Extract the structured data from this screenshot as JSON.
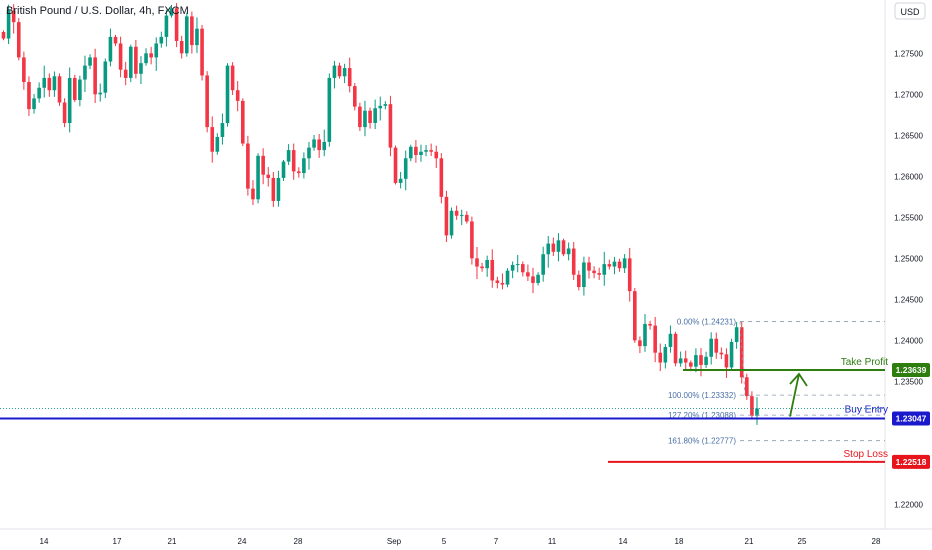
{
  "header": {
    "symbol_title": "British Pound / U.S. Dollar, 4h, FXCM",
    "currency_label": "USD"
  },
  "colors": {
    "up": "#089981",
    "down": "#f23645",
    "take_profit": "#2e7d0f",
    "buy_entry": "#1a1acc",
    "stop_loss": "#e8141c",
    "fib": "#4a6fa5"
  },
  "chart_data": {
    "type": "candlestick",
    "instrument": "British Pound / U.S. Dollar",
    "timeframe": "4h",
    "source": "FXCM",
    "ylim": [
      1.217,
      1.2815
    ],
    "y_ticks": [
      "1.27500",
      "1.27000",
      "1.26500",
      "1.26000",
      "1.25500",
      "1.25000",
      "1.24500",
      "1.24000",
      "1.23500",
      "1.22000"
    ],
    "x_ticks": [
      "14",
      "17",
      "21",
      "24",
      "28",
      "Sep",
      "5",
      "7",
      "11",
      "14",
      "18",
      "21",
      "25",
      "28"
    ],
    "candle_closes": [
      1.2768,
      1.2802,
      1.2788,
      1.2745,
      1.2715,
      1.2682,
      1.2695,
      1.2708,
      1.272,
      1.2705,
      1.2722,
      1.269,
      1.2665,
      1.272,
      1.2693,
      1.2718,
      1.2735,
      1.2745,
      1.27,
      1.2702,
      1.274,
      1.277,
      1.2762,
      1.273,
      1.272,
      1.2758,
      1.2725,
      1.2738,
      1.275,
      1.2745,
      1.2762,
      1.277,
      1.2796,
      1.2805,
      1.2765,
      1.275,
      1.2795,
      1.276,
      1.278,
      1.2723,
      1.266,
      1.263,
      1.2648,
      1.2665,
      1.2735,
      1.2705,
      1.2692,
      1.264,
      1.2585,
      1.2572,
      1.2625,
      1.2602,
      1.2598,
      1.257,
      1.2598,
      1.2618,
      1.2632,
      1.2606,
      1.2604,
      1.2622,
      1.2635,
      1.2645,
      1.2632,
      1.2642,
      1.272,
      1.2735,
      1.2722,
      1.2732,
      1.271,
      1.2685,
      1.266,
      1.268,
      1.2665,
      1.2683,
      1.2686,
      1.2688,
      1.2635,
      1.2592,
      1.2597,
      1.2622,
      1.2636,
      1.2626,
      1.263,
      1.2632,
      1.263,
      1.2622,
      1.2575,
      1.2528,
      1.2558,
      1.2552,
      1.2553,
      1.2545,
      1.25,
      1.249,
      1.2488,
      1.2498,
      1.2473,
      1.247,
      1.2468,
      1.2485,
      1.2492,
      1.2493,
      1.2483,
      1.2478,
      1.247,
      1.248,
      1.2505,
      1.2518,
      1.2508,
      1.2522,
      1.2505,
      1.2512,
      1.248,
      1.2465,
      1.2495,
      1.2485,
      1.2482,
      1.248,
      1.2493,
      1.249,
      1.2496,
      1.2488,
      1.25,
      1.246,
      1.24,
      1.2393,
      1.242,
      1.2418,
      1.2385,
      1.2373,
      1.2392,
      1.2408,
      1.2372,
      1.2378,
      1.2373,
      1.2368,
      1.2382,
      1.237,
      1.238,
      1.2402,
      1.2385,
      1.2383,
      1.2367,
      1.2398,
      1.2416,
      1.2355,
      1.2332,
      1.2308,
      1.2317
    ],
    "last_close": 1.2317,
    "levels": [
      {
        "name": "Take Profit",
        "price": 1.23639,
        "price_label": "1.23639"
      },
      {
        "name": "Buy Entry",
        "price": 1.23047,
        "price_label": "1.23047"
      },
      {
        "name": "Stop Loss",
        "price": 1.22518,
        "price_label": "1.22518"
      }
    ],
    "fibonacci": [
      {
        "label": "0.00% (1.24231)",
        "price": 1.24231
      },
      {
        "label": "100.00% (1.23332)",
        "price": 1.23332
      },
      {
        "label": "127.20% (1.23088)",
        "price": 1.23088
      },
      {
        "label": "161.80% (1.22777)",
        "price": 1.22777
      }
    ],
    "annotation": "arrow from Buy Entry up to Take Profit"
  }
}
